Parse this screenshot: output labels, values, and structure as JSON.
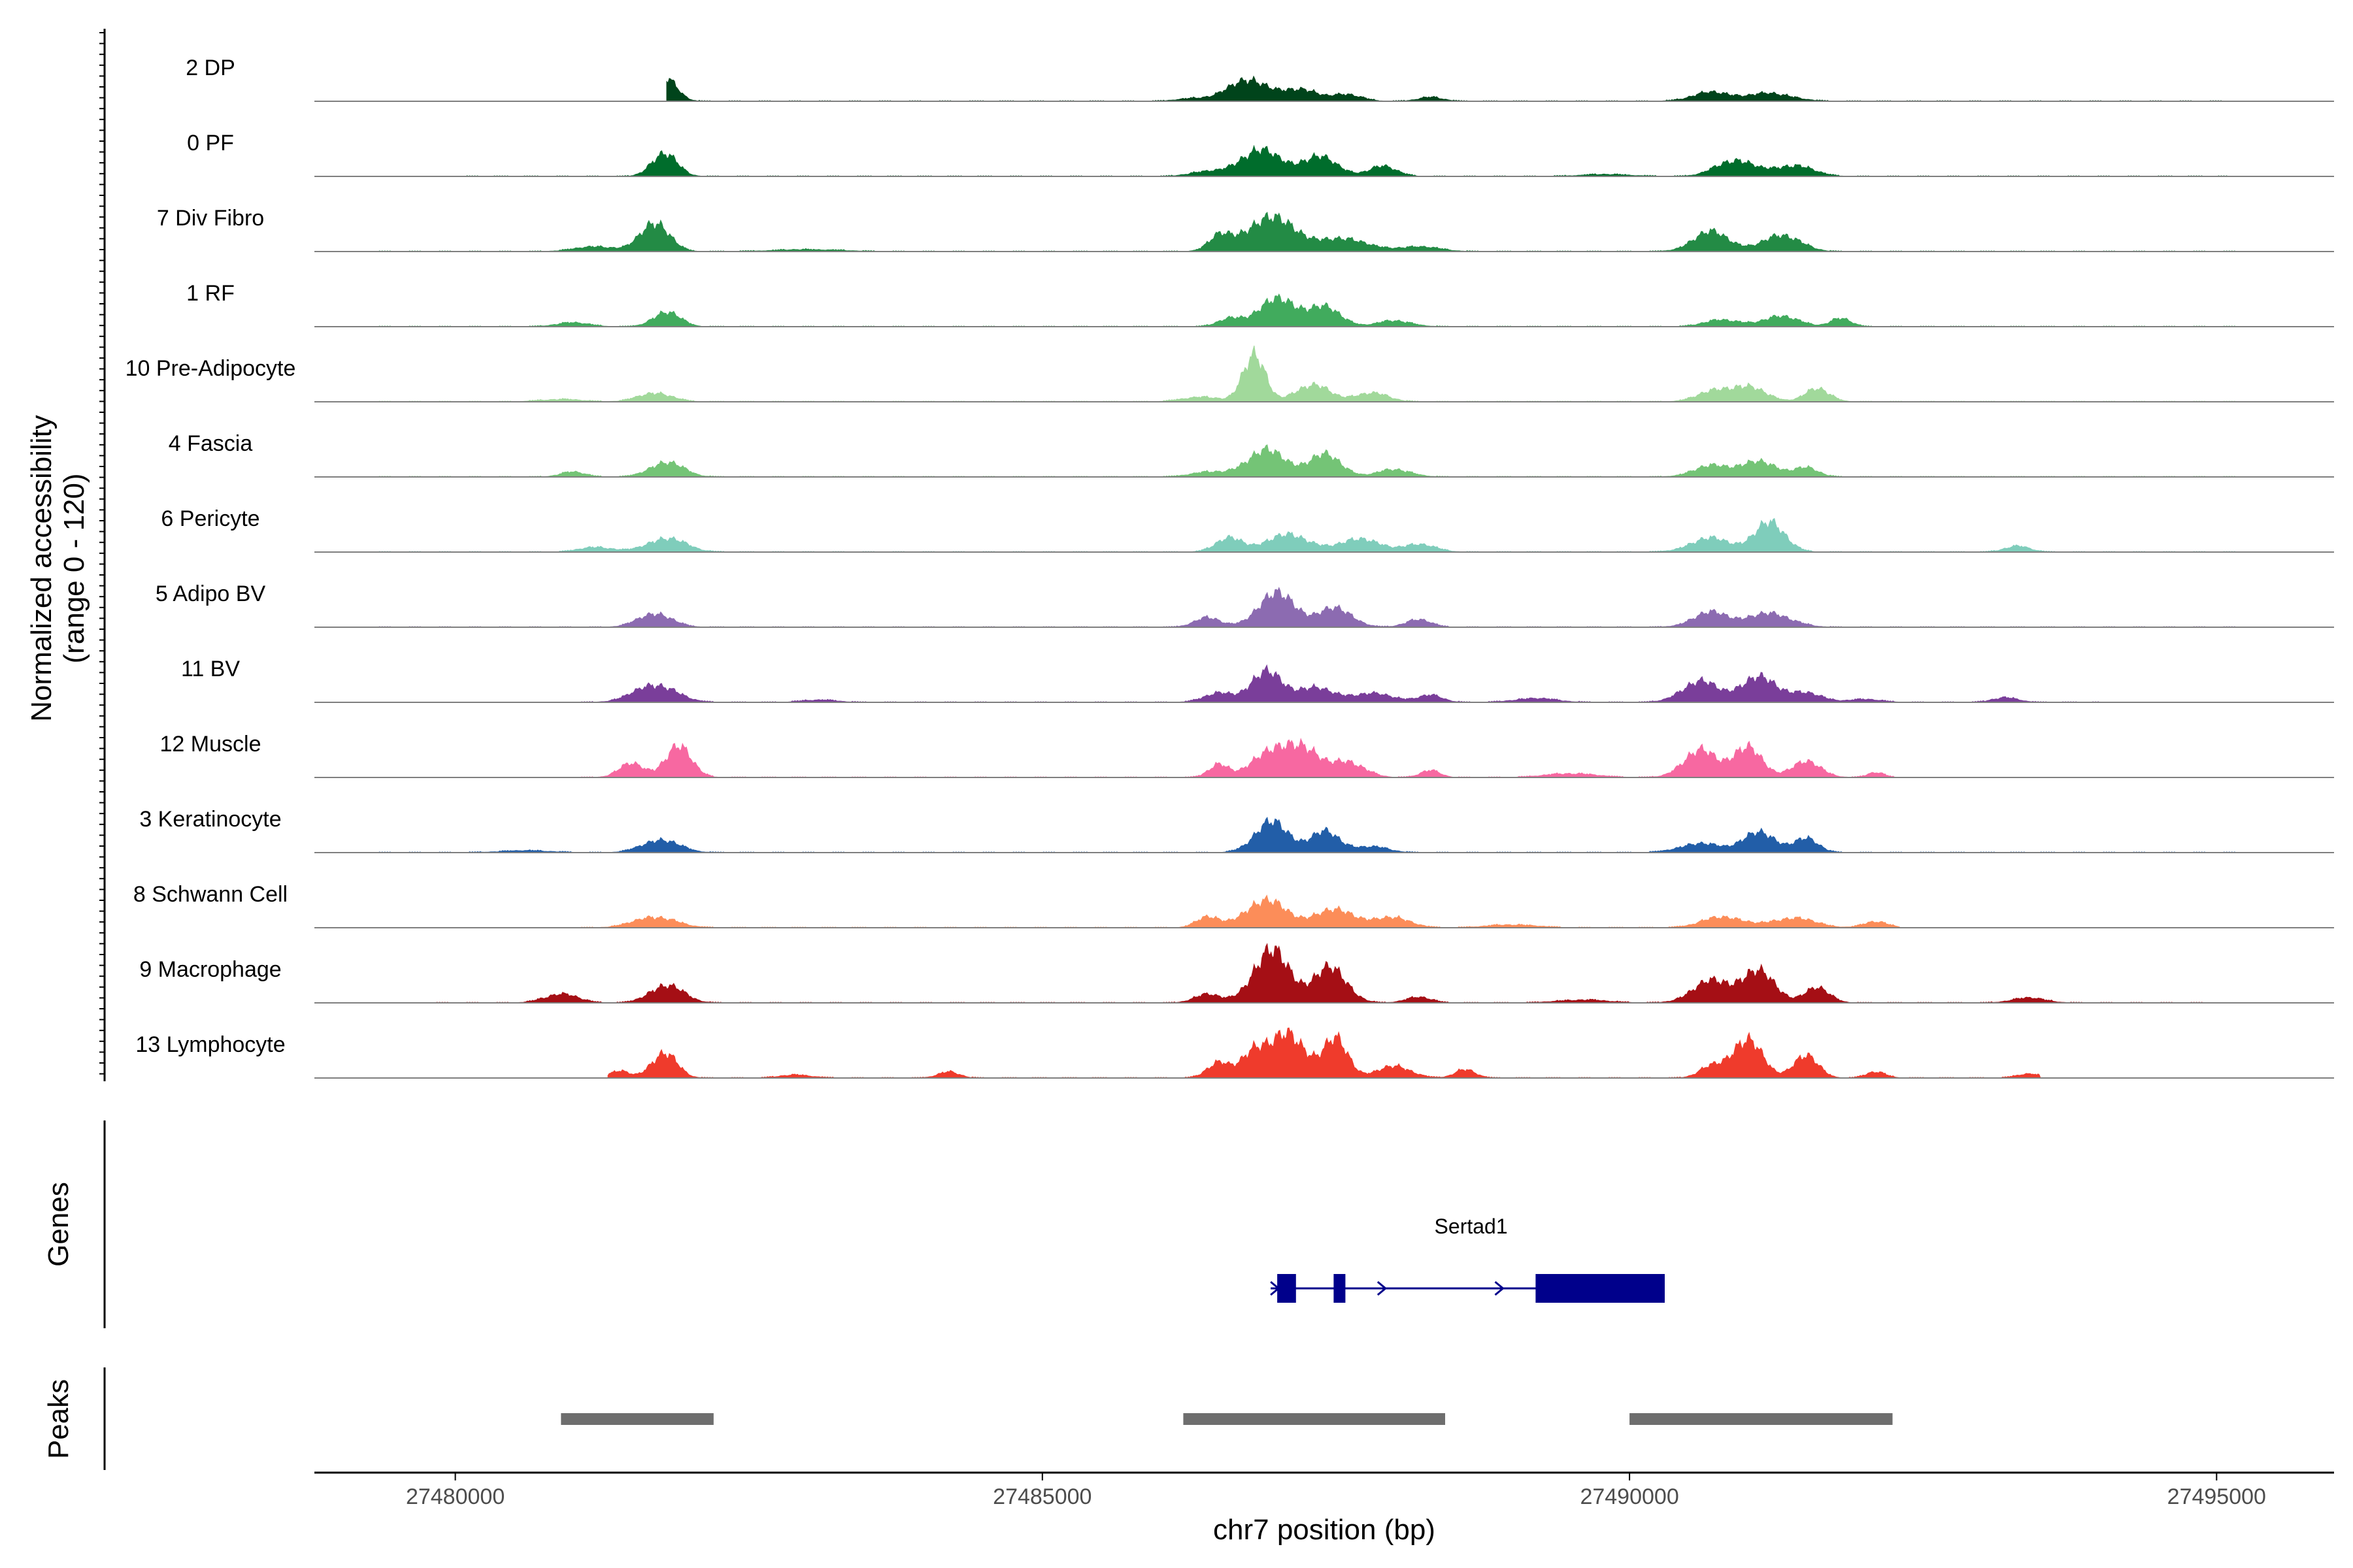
{
  "chart_data": {
    "type": "area",
    "title": "",
    "ylabel_line1": "Normalized accessibility",
    "ylabel_line2": "(range 0 - 120)",
    "ylim": [
      0,
      120
    ],
    "xlabel": "chr7 position (bp)",
    "xlim": [
      27478800,
      27496000
    ],
    "x_ticks": [
      27480000,
      27485000,
      27490000,
      27495000
    ],
    "x_tick_labels": [
      "27480000",
      "27485000",
      "27490000",
      "27495000"
    ],
    "tracks": [
      {
        "name": "2 DP",
        "color": "#00441b",
        "start": 27481800,
        "end": 27495100,
        "peaks": [
          [
            27481780,
            50,
            140
          ],
          [
            27480850,
            5,
            200
          ],
          [
            27486750,
            45,
            230
          ],
          [
            27487200,
            25,
            200
          ],
          [
            27487600,
            14,
            170
          ],
          [
            27488300,
            8,
            150
          ],
          [
            27486300,
            6,
            200
          ],
          [
            27490700,
            18,
            230
          ],
          [
            27491200,
            16,
            260
          ]
        ]
      },
      {
        "name": "0 PF",
        "color": "#006d2c",
        "start": 27480100,
        "end": 27495100,
        "peaks": [
          [
            27481780,
            48,
            150
          ],
          [
            27486850,
            55,
            230
          ],
          [
            27487350,
            40,
            220
          ],
          [
            27487900,
            20,
            170
          ],
          [
            27486400,
            10,
            200
          ],
          [
            27490900,
            33,
            230
          ],
          [
            27491400,
            22,
            230
          ],
          [
            27489800,
            4,
            300
          ]
        ]
      },
      {
        "name": "7 Div Fibro",
        "color": "#238b45",
        "start": 27479300,
        "end": 27495300,
        "peaks": [
          [
            27481700,
            60,
            170
          ],
          [
            27481200,
            10,
            250
          ],
          [
            27486500,
            25,
            120
          ],
          [
            27486950,
            68,
            330
          ],
          [
            27487600,
            25,
            250
          ],
          [
            27488200,
            10,
            250
          ],
          [
            27490700,
            40,
            220
          ],
          [
            27491300,
            34,
            220
          ],
          [
            27483000,
            4,
            400
          ]
        ]
      },
      {
        "name": "1 RF",
        "color": "#41ab5d",
        "start": 27479300,
        "end": 27495300,
        "peaks": [
          [
            27481800,
            30,
            160
          ],
          [
            27481000,
            8,
            200
          ],
          [
            27486600,
            15,
            150
          ],
          [
            27487000,
            55,
            230
          ],
          [
            27487400,
            38,
            200
          ],
          [
            27488000,
            12,
            200
          ],
          [
            27490800,
            14,
            220
          ],
          [
            27491300,
            22,
            200
          ],
          [
            27491800,
            18,
            120
          ]
        ]
      },
      {
        "name": "10 Pre-Adipocyte",
        "color": "#a1d99b",
        "start": 27479300,
        "end": 27495300,
        "peaks": [
          [
            27481700,
            18,
            200
          ],
          [
            27480900,
            5,
            250
          ],
          [
            27486800,
            100,
            130
          ],
          [
            27487300,
            35,
            200
          ],
          [
            27487800,
            18,
            200
          ],
          [
            27486350,
            10,
            220
          ],
          [
            27490700,
            18,
            200
          ],
          [
            27491000,
            30,
            220
          ],
          [
            27491600,
            26,
            150
          ]
        ]
      },
      {
        "name": "4 Fascia",
        "color": "#74c476",
        "start": 27479300,
        "end": 27495300,
        "peaks": [
          [
            27481800,
            30,
            200
          ],
          [
            27481000,
            10,
            150
          ],
          [
            27486900,
            55,
            230
          ],
          [
            27487400,
            45,
            200
          ],
          [
            27488000,
            15,
            200
          ],
          [
            27486400,
            10,
            200
          ],
          [
            27490700,
            22,
            220
          ],
          [
            27491100,
            30,
            220
          ],
          [
            27491500,
            18,
            150
          ]
        ]
      },
      {
        "name": "6 Pericyte",
        "color": "#7fcdbb",
        "start": 27479300,
        "end": 27495300,
        "peaks": [
          [
            27481800,
            28,
            230
          ],
          [
            27481200,
            10,
            200
          ],
          [
            27486600,
            28,
            170
          ],
          [
            27487100,
            36,
            250
          ],
          [
            27487700,
            28,
            220
          ],
          [
            27488200,
            16,
            200
          ],
          [
            27490700,
            28,
            250
          ],
          [
            27491200,
            60,
            180
          ],
          [
            27493300,
            12,
            150
          ]
        ]
      },
      {
        "name": "5 Adipo BV",
        "color": "#8c6bb1",
        "start": 27479300,
        "end": 27495300,
        "peaks": [
          [
            27481700,
            28,
            200
          ],
          [
            27486400,
            20,
            150
          ],
          [
            27487000,
            68,
            230
          ],
          [
            27487500,
            38,
            200
          ],
          [
            27488200,
            16,
            150
          ],
          [
            27490700,
            30,
            220
          ],
          [
            27491200,
            28,
            250
          ]
        ]
      },
      {
        "name": "11 BV",
        "color": "#7a3e9a",
        "start": 27481000,
        "end": 27494000,
        "peaks": [
          [
            27481700,
            36,
            250
          ],
          [
            27483100,
            5,
            200
          ],
          [
            27486500,
            18,
            180
          ],
          [
            27486900,
            62,
            180
          ],
          [
            27487300,
            30,
            220
          ],
          [
            27487800,
            18,
            260
          ],
          [
            27488300,
            14,
            150
          ],
          [
            27489200,
            8,
            250
          ],
          [
            27490600,
            42,
            220
          ],
          [
            27491100,
            50,
            220
          ],
          [
            27491500,
            18,
            200
          ],
          [
            27493200,
            10,
            150
          ],
          [
            27492000,
            6,
            200
          ]
        ]
      },
      {
        "name": "12 Muscle",
        "color": "#f768a1",
        "start": 27481000,
        "end": 27492300,
        "peaks": [
          [
            27481500,
            28,
            150
          ],
          [
            27481900,
            62,
            160
          ],
          [
            27486500,
            25,
            120
          ],
          [
            27486900,
            45,
            200
          ],
          [
            27487200,
            65,
            200
          ],
          [
            27487600,
            32,
            200
          ],
          [
            27488300,
            14,
            120
          ],
          [
            27490600,
            55,
            200
          ],
          [
            27491000,
            62,
            170
          ],
          [
            27491500,
            32,
            180
          ],
          [
            27492100,
            10,
            100
          ],
          [
            27489500,
            8,
            300
          ]
        ]
      },
      {
        "name": "3 Keratinocyte",
        "color": "#225ea8",
        "start": 27479300,
        "end": 27495300,
        "peaks": [
          [
            27481750,
            26,
            220
          ],
          [
            27480600,
            4,
            300
          ],
          [
            27486950,
            62,
            200
          ],
          [
            27487400,
            42,
            180
          ],
          [
            27487800,
            12,
            200
          ],
          [
            27490600,
            18,
            250
          ],
          [
            27491100,
            40,
            200
          ],
          [
            27491500,
            28,
            150
          ]
        ]
      },
      {
        "name": "8 Schwann Cell",
        "color": "#fc8d59",
        "start": 27481000,
        "end": 27492300,
        "peaks": [
          [
            27481700,
            22,
            250
          ],
          [
            27486400,
            22,
            130
          ],
          [
            27486900,
            55,
            250
          ],
          [
            27487500,
            36,
            260
          ],
          [
            27488000,
            20,
            200
          ],
          [
            27490800,
            22,
            250
          ],
          [
            27491400,
            20,
            250
          ],
          [
            27492100,
            12,
            150
          ],
          [
            27489000,
            6,
            300
          ]
        ]
      },
      {
        "name": "9 Macrophage",
        "color": "#a50f15",
        "start": 27479700,
        "end": 27495000,
        "peaks": [
          [
            27480900,
            18,
            200
          ],
          [
            27481800,
            36,
            200
          ],
          [
            27486400,
            18,
            150
          ],
          [
            27486950,
            105,
            220
          ],
          [
            27487450,
            70,
            200
          ],
          [
            27488200,
            12,
            150
          ],
          [
            27490700,
            44,
            230
          ],
          [
            27491100,
            62,
            200
          ],
          [
            27491600,
            30,
            150
          ],
          [
            27493400,
            10,
            200
          ],
          [
            27489600,
            6,
            300
          ]
        ]
      },
      {
        "name": "13 Lymphocyte",
        "color": "#ef3b2c",
        "start": 27481300,
        "end": 27493500,
        "peaks": [
          [
            27481400,
            14,
            120
          ],
          [
            27481780,
            52,
            150
          ],
          [
            27484200,
            12,
            130
          ],
          [
            27486500,
            30,
            140
          ],
          [
            27486800,
            55,
            150
          ],
          [
            27487100,
            90,
            200
          ],
          [
            27487500,
            78,
            150
          ],
          [
            27488000,
            24,
            200
          ],
          [
            27488600,
            18,
            120
          ],
          [
            27490700,
            22,
            150
          ],
          [
            27491000,
            78,
            180
          ],
          [
            27491500,
            45,
            150
          ],
          [
            27492100,
            12,
            120
          ],
          [
            27493400,
            8,
            150
          ],
          [
            27482900,
            6,
            200
          ]
        ]
      }
    ],
    "genes": {
      "label": "Genes",
      "items": [
        {
          "name": "Sertad1",
          "start": 27487000,
          "end": 27490300,
          "strand": "+",
          "exons": [
            [
              27487000,
              27487160
            ],
            [
              27487480,
              27487580
            ],
            [
              27489200,
              27490300
            ]
          ]
        }
      ]
    },
    "peaks": {
      "label": "Peaks",
      "regions": [
        [
          27480900,
          27482200
        ],
        [
          27486200,
          27488430
        ],
        [
          27490000,
          27492240
        ]
      ]
    }
  }
}
